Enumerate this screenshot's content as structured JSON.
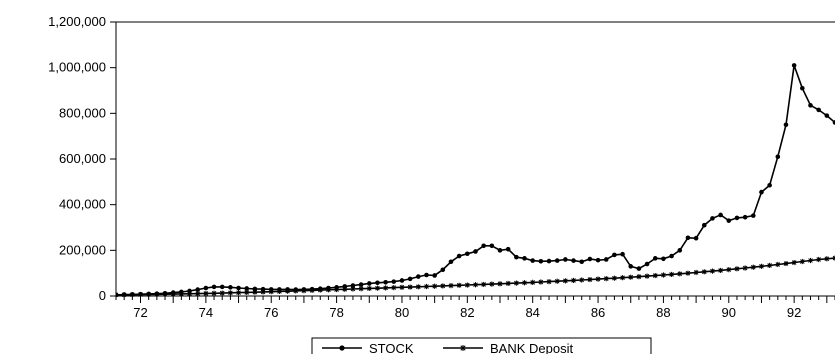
{
  "chart_data": {
    "type": "line",
    "title": "",
    "xlabel": "",
    "ylabel": "",
    "x_range": [
      1971.25,
      1993.25
    ],
    "ylim": [
      0,
      1200000
    ],
    "y_ticks": [
      0,
      200000,
      400000,
      600000,
      800000,
      1000000,
      1200000
    ],
    "y_tick_labels": [
      "0",
      "200,000",
      "400,000",
      "600,000",
      "800,000",
      "1,000,000",
      "1,200,000"
    ],
    "x_ticks": [
      1972,
      1974,
      1976,
      1978,
      1980,
      1982,
      1984,
      1986,
      1988,
      1990,
      1992
    ],
    "x_tick_labels": [
      "72",
      "74",
      "76",
      "78",
      "80",
      "82",
      "84",
      "86",
      "88",
      "90",
      "92"
    ],
    "grid": false,
    "legend_position": "bottom-center",
    "series": [
      {
        "name": "STOCK",
        "marker": "dot",
        "color": "#000000",
        "x": [
          1971.25,
          1971.5,
          1971.75,
          1972,
          1972.25,
          1972.5,
          1972.75,
          1973,
          1973.25,
          1973.5,
          1973.75,
          1974,
          1974.25,
          1974.5,
          1974.75,
          1975,
          1975.25,
          1975.5,
          1975.75,
          1976,
          1976.25,
          1976.5,
          1976.75,
          1977,
          1977.25,
          1977.5,
          1977.75,
          1978,
          1978.25,
          1978.5,
          1978.75,
          1979,
          1979.25,
          1979.5,
          1979.75,
          1980,
          1980.25,
          1980.5,
          1980.75,
          1981,
          1981.25,
          1981.5,
          1981.75,
          1982,
          1982.25,
          1982.5,
          1982.75,
          1983,
          1983.25,
          1983.5,
          1983.75,
          1984,
          1984.25,
          1984.5,
          1984.75,
          1985,
          1985.25,
          1985.5,
          1985.75,
          1986,
          1986.25,
          1986.5,
          1986.75,
          1987,
          1987.25,
          1987.5,
          1987.75,
          1988,
          1988.25,
          1988.5,
          1988.75,
          1989,
          1989.25,
          1989.5,
          1989.75,
          1990,
          1990.25,
          1990.5,
          1990.75,
          1991,
          1991.25,
          1991.5,
          1991.75,
          1992,
          1992.25,
          1992.5,
          1992.75,
          1993,
          1993.25
        ],
        "values": [
          5000,
          6000,
          7000,
          8000,
          9000,
          10000,
          12000,
          15000,
          18000,
          22000,
          28000,
          35000,
          40000,
          40000,
          38000,
          35000,
          33000,
          31000,
          30000,
          29000,
          29000,
          29000,
          28000,
          29000,
          30000,
          32000,
          35000,
          38000,
          42000,
          46000,
          50000,
          55000,
          58000,
          60000,
          63000,
          68000,
          75000,
          85000,
          92000,
          90000,
          115000,
          150000,
          175000,
          185000,
          195000,
          220000,
          220000,
          200000,
          205000,
          170000,
          165000,
          155000,
          152000,
          153000,
          155000,
          160000,
          155000,
          150000,
          162000,
          157000,
          160000,
          180000,
          183000,
          130000,
          120000,
          140000,
          165000,
          163000,
          175000,
          200000,
          255000,
          253000,
          310000,
          340000,
          355000,
          330000,
          342000,
          345000,
          352000,
          455000,
          485000,
          610000,
          750000,
          1010000,
          910000,
          835000,
          815000,
          790000,
          760000
        ]
      },
      {
        "name": "BANK Deposit",
        "marker": "star",
        "color": "#000000",
        "x": [
          1971.25,
          1971.5,
          1971.75,
          1972,
          1972.25,
          1972.5,
          1972.75,
          1973,
          1973.25,
          1973.5,
          1973.75,
          1974,
          1974.25,
          1974.5,
          1974.75,
          1975,
          1975.25,
          1975.5,
          1975.75,
          1976,
          1976.25,
          1976.5,
          1976.75,
          1977,
          1977.25,
          1977.5,
          1977.75,
          1978,
          1978.25,
          1978.5,
          1978.75,
          1979,
          1979.25,
          1979.5,
          1979.75,
          1980,
          1980.25,
          1980.5,
          1980.75,
          1981,
          1981.25,
          1981.5,
          1981.75,
          1982,
          1982.25,
          1982.5,
          1982.75,
          1983,
          1983.25,
          1983.5,
          1983.75,
          1984,
          1984.25,
          1984.5,
          1984.75,
          1985,
          1985.25,
          1985.5,
          1985.75,
          1986,
          1986.25,
          1986.5,
          1986.75,
          1987,
          1987.25,
          1987.5,
          1987.75,
          1988,
          1988.25,
          1988.5,
          1988.75,
          1989,
          1989.25,
          1989.5,
          1989.75,
          1990,
          1990.25,
          1990.5,
          1990.75,
          1991,
          1991.25,
          1991.5,
          1991.75,
          1992,
          1992.25,
          1992.5,
          1992.75,
          1993,
          1993.25
        ],
        "values": [
          5000,
          5400,
          5800,
          6200,
          6700,
          7200,
          7800,
          8400,
          9000,
          9700,
          10400,
          11200,
          12000,
          12900,
          13800,
          14700,
          15700,
          16700,
          17800,
          18900,
          20000,
          21100,
          22300,
          23500,
          24700,
          25900,
          27100,
          28300,
          29500,
          30700,
          31900,
          33100,
          34300,
          35500,
          36700,
          37900,
          39100,
          40300,
          41500,
          42800,
          44100,
          45400,
          46700,
          48000,
          49300,
          50700,
          52100,
          53500,
          55000,
          56500,
          58000,
          59600,
          61200,
          62900,
          64600,
          66400,
          68200,
          70100,
          72000,
          74000,
          76000,
          78100,
          80200,
          82400,
          84700,
          87000,
          89400,
          91900,
          94500,
          97200,
          100000,
          103000,
          106000,
          109000,
          112000,
          115500,
          119000,
          122500,
          126000,
          130000,
          134000,
          138000,
          142000,
          146500,
          151000,
          155500,
          160000,
          163000,
          166000
        ]
      }
    ]
  }
}
